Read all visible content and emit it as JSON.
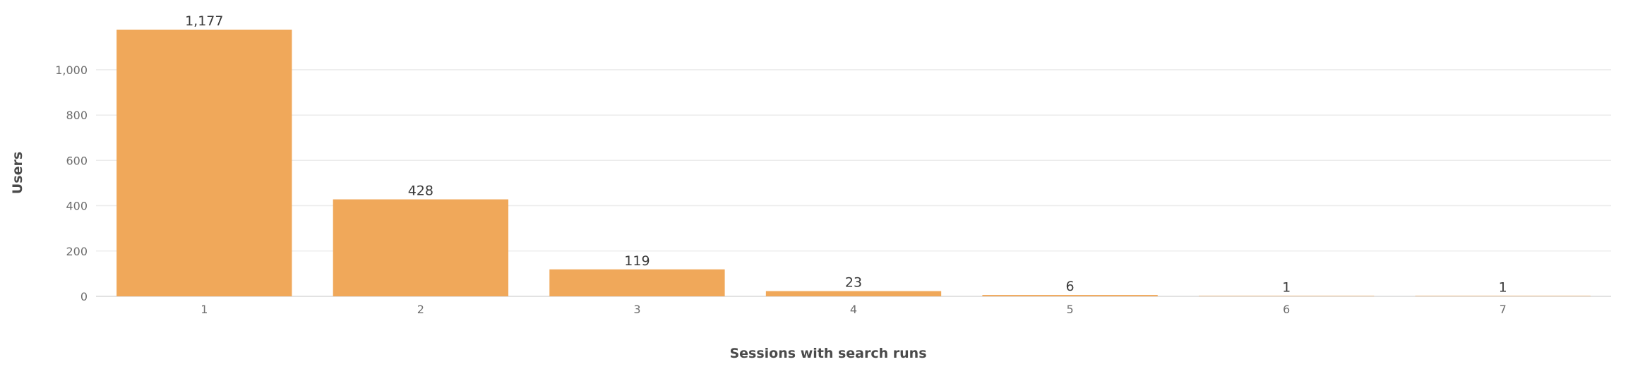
{
  "chart_data": {
    "type": "bar",
    "title": "",
    "xlabel": "Sessions with search runs",
    "ylabel": "Users",
    "categories": [
      "1",
      "2",
      "3",
      "4",
      "5",
      "6",
      "7"
    ],
    "values": [
      1177,
      428,
      119,
      23,
      6,
      1,
      1
    ],
    "data_labels": [
      "1,177",
      "428",
      "119",
      "23",
      "6",
      "1",
      "1"
    ],
    "ylim": [
      0,
      1177
    ],
    "yticks": [
      0,
      200,
      400,
      600,
      800,
      1000
    ],
    "ytick_labels": [
      "0",
      "200",
      "400",
      "600",
      "800",
      "1,000"
    ],
    "grid": true,
    "bar_color": "#f0a85a"
  }
}
